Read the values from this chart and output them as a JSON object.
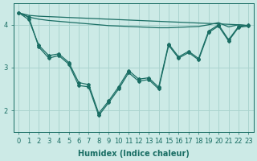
{
  "xlabel": "Humidex (Indice chaleur)",
  "background_color": "#cceae6",
  "grid_color": "#aad4cf",
  "line_color": "#1a6e64",
  "x": [
    0,
    1,
    2,
    3,
    4,
    5,
    6,
    7,
    8,
    9,
    10,
    11,
    12,
    13,
    14,
    15,
    16,
    17,
    18,
    19,
    20,
    21,
    22,
    23
  ],
  "line_top1": [
    4.28,
    4.22,
    4.2,
    4.19,
    4.18,
    4.17,
    4.16,
    4.15,
    4.14,
    4.13,
    4.12,
    4.11,
    4.1,
    4.09,
    4.08,
    4.07,
    4.06,
    4.05,
    4.04,
    4.03,
    4.02,
    4.01,
    4.0,
    3.98
  ],
  "line_top2": [
    4.28,
    4.18,
    4.13,
    4.1,
    4.08,
    4.06,
    4.04,
    4.02,
    4.0,
    3.98,
    3.97,
    3.96,
    3.95,
    3.94,
    3.93,
    3.93,
    3.94,
    3.95,
    3.96,
    4.0,
    4.05,
    3.95,
    4.0,
    3.98
  ],
  "line_marker1": [
    4.28,
    4.18,
    3.48,
    3.22,
    3.28,
    3.08,
    2.58,
    2.55,
    1.88,
    2.18,
    2.5,
    2.88,
    2.68,
    2.72,
    2.5,
    3.52,
    3.22,
    3.35,
    3.18,
    3.82,
    3.97,
    3.62,
    3.94,
    3.97
  ],
  "line_marker2": [
    4.28,
    4.12,
    3.52,
    3.28,
    3.32,
    3.12,
    2.65,
    2.6,
    1.93,
    2.22,
    2.55,
    2.93,
    2.73,
    2.76,
    2.54,
    3.55,
    3.25,
    3.38,
    3.21,
    3.85,
    4.0,
    3.65,
    3.96,
    3.99
  ],
  "ylim": [
    1.5,
    4.5
  ],
  "yticks": [
    2,
    3,
    4
  ],
  "xticks": [
    0,
    1,
    2,
    3,
    4,
    5,
    6,
    7,
    8,
    9,
    10,
    11,
    12,
    13,
    14,
    15,
    16,
    17,
    18,
    19,
    20,
    21,
    22,
    23
  ],
  "axis_fontsize": 7,
  "tick_fontsize": 6
}
